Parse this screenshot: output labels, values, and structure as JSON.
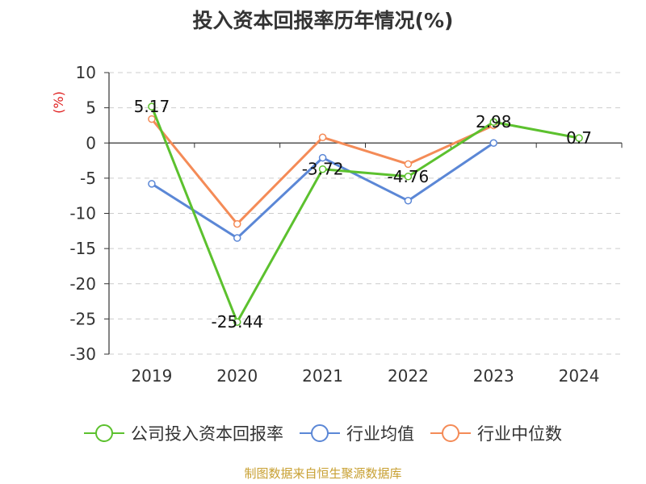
{
  "chart_data": {
    "type": "line",
    "title": "投入资本回报率历年情况(%)",
    "ylabel": "(%)",
    "xlabel": "",
    "categories": [
      "2019",
      "2020",
      "2021",
      "2022",
      "2023",
      "2024"
    ],
    "ylim": [
      -30,
      10
    ],
    "yticks": [
      10,
      5,
      0,
      -5,
      -10,
      -15,
      -20,
      -25,
      -30
    ],
    "grid": true,
    "legend_position": "bottom",
    "series": [
      {
        "name": "公司投入资本回报率",
        "color": "#5cc12e",
        "values": [
          5.17,
          -25.44,
          -3.72,
          -4.76,
          2.98,
          0.7
        ],
        "labels": [
          "5.17",
          "-25.44",
          "-3.72",
          "-4.76",
          "2.98",
          "0.7"
        ]
      },
      {
        "name": "行业均值",
        "color": "#5b87d6",
        "values": [
          -5.8,
          -13.5,
          -2.1,
          -8.2,
          0.0,
          null
        ]
      },
      {
        "name": "行业中位数",
        "color": "#f48b57",
        "values": [
          3.4,
          -11.5,
          0.8,
          -3.0,
          2.5,
          null
        ]
      }
    ]
  },
  "source": "制图数据来自恒生聚源数据库"
}
